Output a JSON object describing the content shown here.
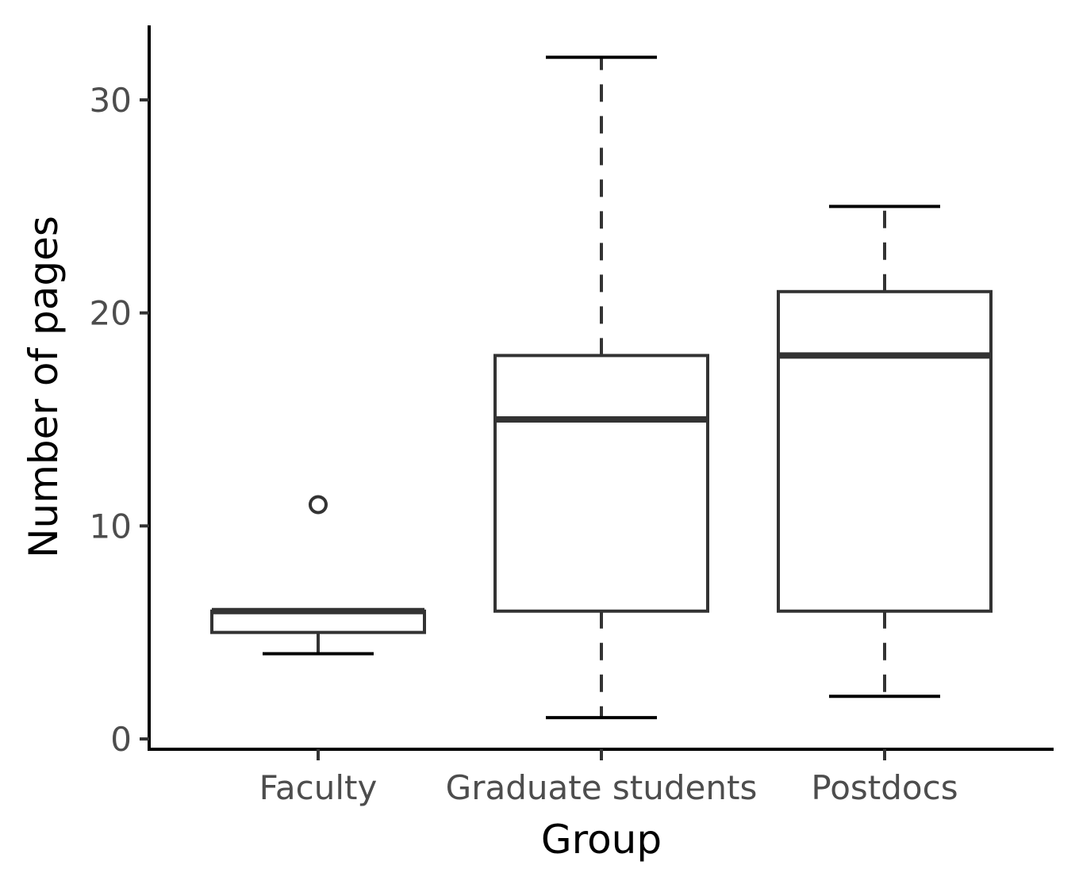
{
  "chart_data": {
    "type": "box",
    "title": "",
    "xlabel": "Group",
    "ylabel": "Number of pages",
    "ylim": [
      -0.5,
      33.5
    ],
    "yticks": [
      0,
      10,
      20,
      30
    ],
    "grid": false,
    "categories": [
      "Faculty",
      "Graduate students",
      "Postdocs"
    ],
    "boxes": [
      {
        "category": "Faculty",
        "whisker_low": 4,
        "q1": 5,
        "median": 6,
        "q3": 6,
        "whisker_high": 6,
        "outliers": [
          11
        ],
        "whisker_style": "solid"
      },
      {
        "category": "Graduate students",
        "whisker_low": 1,
        "q1": 6,
        "median": 15,
        "q3": 18,
        "whisker_high": 32,
        "outliers": [],
        "whisker_style": "dashed"
      },
      {
        "category": "Postdocs",
        "whisker_low": 2,
        "q1": 6,
        "median": 18,
        "q3": 21,
        "whisker_high": 25,
        "outliers": [],
        "whisker_style": "dashed"
      }
    ],
    "colors": {
      "box_stroke": "#333333",
      "axis": "#000000",
      "tick_label": "#4d4d4d",
      "fill": "#ffffff"
    }
  }
}
